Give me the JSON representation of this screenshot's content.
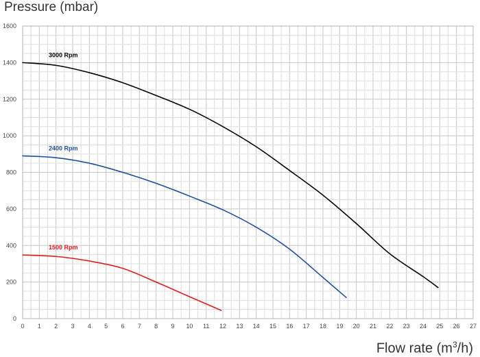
{
  "chart_data": {
    "type": "line",
    "title": "",
    "ylabel": "Pressure (mbar)",
    "xlabel_main": "Flow rate (m",
    "xlabel_sup": "3",
    "xlabel_end": "/h)",
    "xlim": [
      0,
      27
    ],
    "ylim": [
      0,
      1600
    ],
    "xticks": [
      0,
      1,
      2,
      3,
      4,
      5,
      6,
      7,
      8,
      9,
      10,
      11,
      12,
      13,
      14,
      15,
      16,
      17,
      18,
      19,
      20,
      21,
      22,
      23,
      24,
      25,
      26,
      27
    ],
    "yticks": [
      0,
      200,
      400,
      600,
      800,
      1000,
      1200,
      1400,
      1600
    ],
    "grid": true,
    "series": [
      {
        "name": "3000 Rpm",
        "color": "#000000",
        "x": [
          0,
          2,
          4,
          6,
          8,
          10,
          12,
          14,
          16,
          18,
          20,
          22,
          24,
          24.9
        ],
        "y": [
          1400,
          1385,
          1345,
          1290,
          1220,
          1145,
          1050,
          940,
          810,
          675,
          520,
          355,
          230,
          170
        ]
      },
      {
        "name": "2400 Rpm",
        "color": "#1f4e9c",
        "x": [
          0,
          2,
          4,
          6,
          8,
          10,
          12,
          14,
          16,
          18,
          19.4
        ],
        "y": [
          890,
          880,
          850,
          800,
          740,
          670,
          595,
          500,
          380,
          225,
          115
        ]
      },
      {
        "name": "1500 Rpm",
        "color": "#e11b1b",
        "x": [
          0,
          2,
          4,
          6,
          8,
          10,
          11.9
        ],
        "y": [
          348,
          340,
          315,
          275,
          200,
          120,
          45
        ]
      }
    ]
  }
}
